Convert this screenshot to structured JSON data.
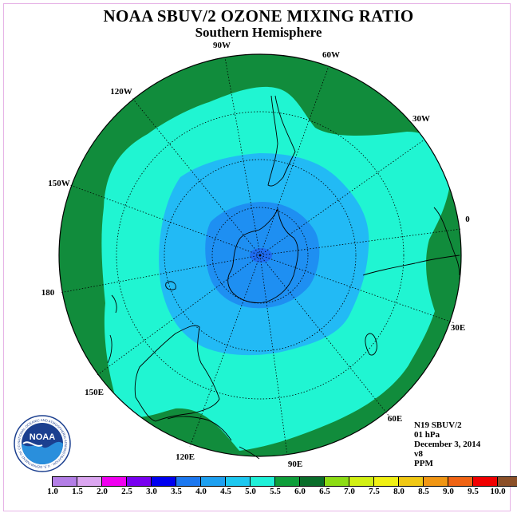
{
  "title": "NOAA SBUV/2 OZONE MIXING RATIO",
  "subtitle": "Southern Hemisphere",
  "longitude_labels": [
    "90W",
    "60W",
    "30W",
    "0",
    "30E",
    "60E",
    "90E",
    "120E",
    "150E",
    "180",
    "150W",
    "120W"
  ],
  "info": {
    "satellite": "N19 SBUV/2",
    "level": "01 hPa",
    "date": "December 3, 2014",
    "version": "v8",
    "units": "PPM"
  },
  "colorbar": {
    "labels": [
      "1.0",
      "1.5",
      "2.0",
      "2.5",
      "3.0",
      "3.5",
      "4.0",
      "4.5",
      "5.0",
      "5.5",
      "6.0",
      "6.5",
      "7.0",
      "7.5",
      "8.0",
      "8.5",
      "9.0",
      "9.5",
      "10.0"
    ],
    "colors": [
      "#b37ee6",
      "#dba6f0",
      "#f000f0",
      "#7800f0",
      "#0000f0",
      "#1c78f0",
      "#1ea0f0",
      "#1ec8f0",
      "#20f0d8",
      "#0e9e3a",
      "#0a6e2a",
      "#8cdc14",
      "#d2f014",
      "#f0f014",
      "#f0c814",
      "#f09614",
      "#f06414",
      "#f00000",
      "#8c5028"
    ]
  },
  "logo": {
    "text": "NOAA",
    "ring_text": "NATIONAL OCEANIC AND ATMOSPHERIC ADMINISTRATION · U.S. DEPARTMENT OF COMMERCE"
  },
  "map_colors": {
    "outer_band": "#118c3c",
    "main": "#20f5d2",
    "ring": "#22baf5",
    "inner": "#1e8ff2",
    "pole": "#1f6cf0"
  }
}
